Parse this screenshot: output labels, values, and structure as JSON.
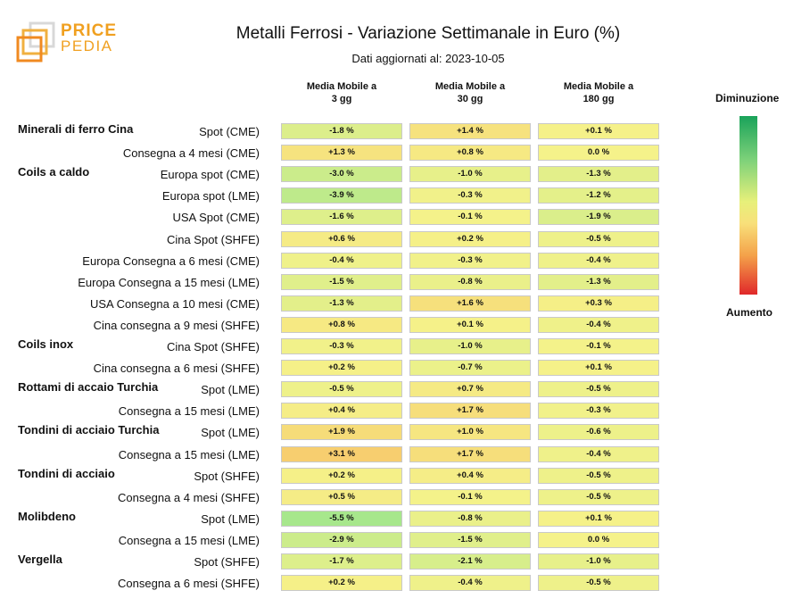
{
  "header": {
    "logo_line1": "PRICE",
    "logo_line2": "PEDIA",
    "title": "Metalli Ferrosi - Variazione Settimanale in Euro (%)",
    "subtitle": "Dati aggiornati al: 2023-10-05"
  },
  "legend": {
    "top_label": "Diminuzione",
    "bottom_label": "Aumento",
    "colors": [
      "#1aa35a",
      "#7fd27a",
      "#e7f07a",
      "#f8e07a",
      "#f4a24a",
      "#e0282a"
    ]
  },
  "chart_data": {
    "type": "heatmap",
    "title": "Metalli Ferrosi - Variazione Settimanale in Euro (%)",
    "subtitle": "Dati aggiornati al: 2023-10-05",
    "columns": [
      "Media Mobile a 3 gg",
      "Media Mobile a 30 gg",
      "Media Mobile a 180 gg"
    ],
    "column_lines": [
      [
        "Media Mobile a",
        "3 gg"
      ],
      [
        "Media Mobile a",
        "30 gg"
      ],
      [
        "Media Mobile a",
        "180 gg"
      ]
    ],
    "rows": [
      {
        "group": "Minerali di ferro Cina",
        "label": "Spot (CME)",
        "values": [
          "-1.8 %",
          "+1.4 %",
          "+0.1 %"
        ]
      },
      {
        "group": "",
        "label": "Consegna a 4 mesi (CME)",
        "values": [
          "+1.3 %",
          "+0.8 %",
          "0.0 %"
        ]
      },
      {
        "group": "Coils a caldo",
        "label": "Europa spot (CME)",
        "values": [
          "-3.0 %",
          "-1.0 %",
          "-1.3 %"
        ]
      },
      {
        "group": "",
        "label": "Europa spot (LME)",
        "values": [
          "-3.9 %",
          "-0.3 %",
          "-1.2 %"
        ]
      },
      {
        "group": "",
        "label": "USA Spot (CME)",
        "values": [
          "-1.6 %",
          "-0.1 %",
          "-1.9 %"
        ]
      },
      {
        "group": "",
        "label": "Cina Spot (SHFE)",
        "values": [
          "+0.6 %",
          "+0.2 %",
          "-0.5 %"
        ]
      },
      {
        "group": "",
        "label": "Europa Consegna a 6 mesi (CME)",
        "values": [
          "-0.4 %",
          "-0.3 %",
          "-0.4 %"
        ]
      },
      {
        "group": "",
        "label": "Europa Consegna a 15 mesi (LME)",
        "values": [
          "-1.5 %",
          "-0.8 %",
          "-1.3 %"
        ]
      },
      {
        "group": "",
        "label": "USA Consegna a 10 mesi (CME)",
        "values": [
          "-1.3 %",
          "+1.6 %",
          "+0.3 %"
        ]
      },
      {
        "group": "",
        "label": "Cina consegna a 9 mesi (SHFE)",
        "values": [
          "+0.8 %",
          "+0.1 %",
          "-0.4 %"
        ]
      },
      {
        "group": "Coils inox",
        "label": "Cina Spot (SHFE)",
        "values": [
          "-0.3 %",
          "-1.0 %",
          "-0.1 %"
        ]
      },
      {
        "group": "",
        "label": "Cina consegna a 6 mesi (SHFE)",
        "values": [
          "+0.2 %",
          "-0.7 %",
          "+0.1 %"
        ]
      },
      {
        "group": "Rottami di accaio Turchia",
        "label": "Spot (LME)",
        "values": [
          "-0.5 %",
          "+0.7 %",
          "-0.5 %"
        ]
      },
      {
        "group": "",
        "label": "Consegna a 15 mesi (LME)",
        "values": [
          "+0.4 %",
          "+1.7 %",
          "-0.3 %"
        ]
      },
      {
        "group": "Tondini di acciaio Turchia",
        "label": "Spot (LME)",
        "values": [
          "+1.9 %",
          "+1.0 %",
          "-0.6 %"
        ]
      },
      {
        "group": "",
        "label": "Consegna a 15 mesi (LME)",
        "values": [
          "+3.1 %",
          "+1.7 %",
          "-0.4 %"
        ]
      },
      {
        "group": "Tondini di acciaio",
        "label": "Spot (SHFE)",
        "values": [
          "+0.2 %",
          "+0.4 %",
          "-0.5 %"
        ]
      },
      {
        "group": "",
        "label": "Consegna a 4 mesi (SHFE)",
        "values": [
          "+0.5 %",
          "-0.1 %",
          "-0.5 %"
        ]
      },
      {
        "group": "Molibdeno",
        "label": "Spot (LME)",
        "values": [
          "-5.5 %",
          "-0.8 %",
          "+0.1 %"
        ]
      },
      {
        "group": "",
        "label": "Consegna a 15 mesi (LME)",
        "values": [
          "-2.9 %",
          "-1.5 %",
          "0.0 %"
        ]
      },
      {
        "group": "Vergella",
        "label": "Spot (SHFE)",
        "values": [
          "-1.7 %",
          "-2.1 %",
          "-1.0 %"
        ]
      },
      {
        "group": "",
        "label": "Consegna a 6 mesi (SHFE)",
        "values": [
          "+0.2 %",
          "-0.4 %",
          "-0.5 %"
        ]
      }
    ]
  }
}
